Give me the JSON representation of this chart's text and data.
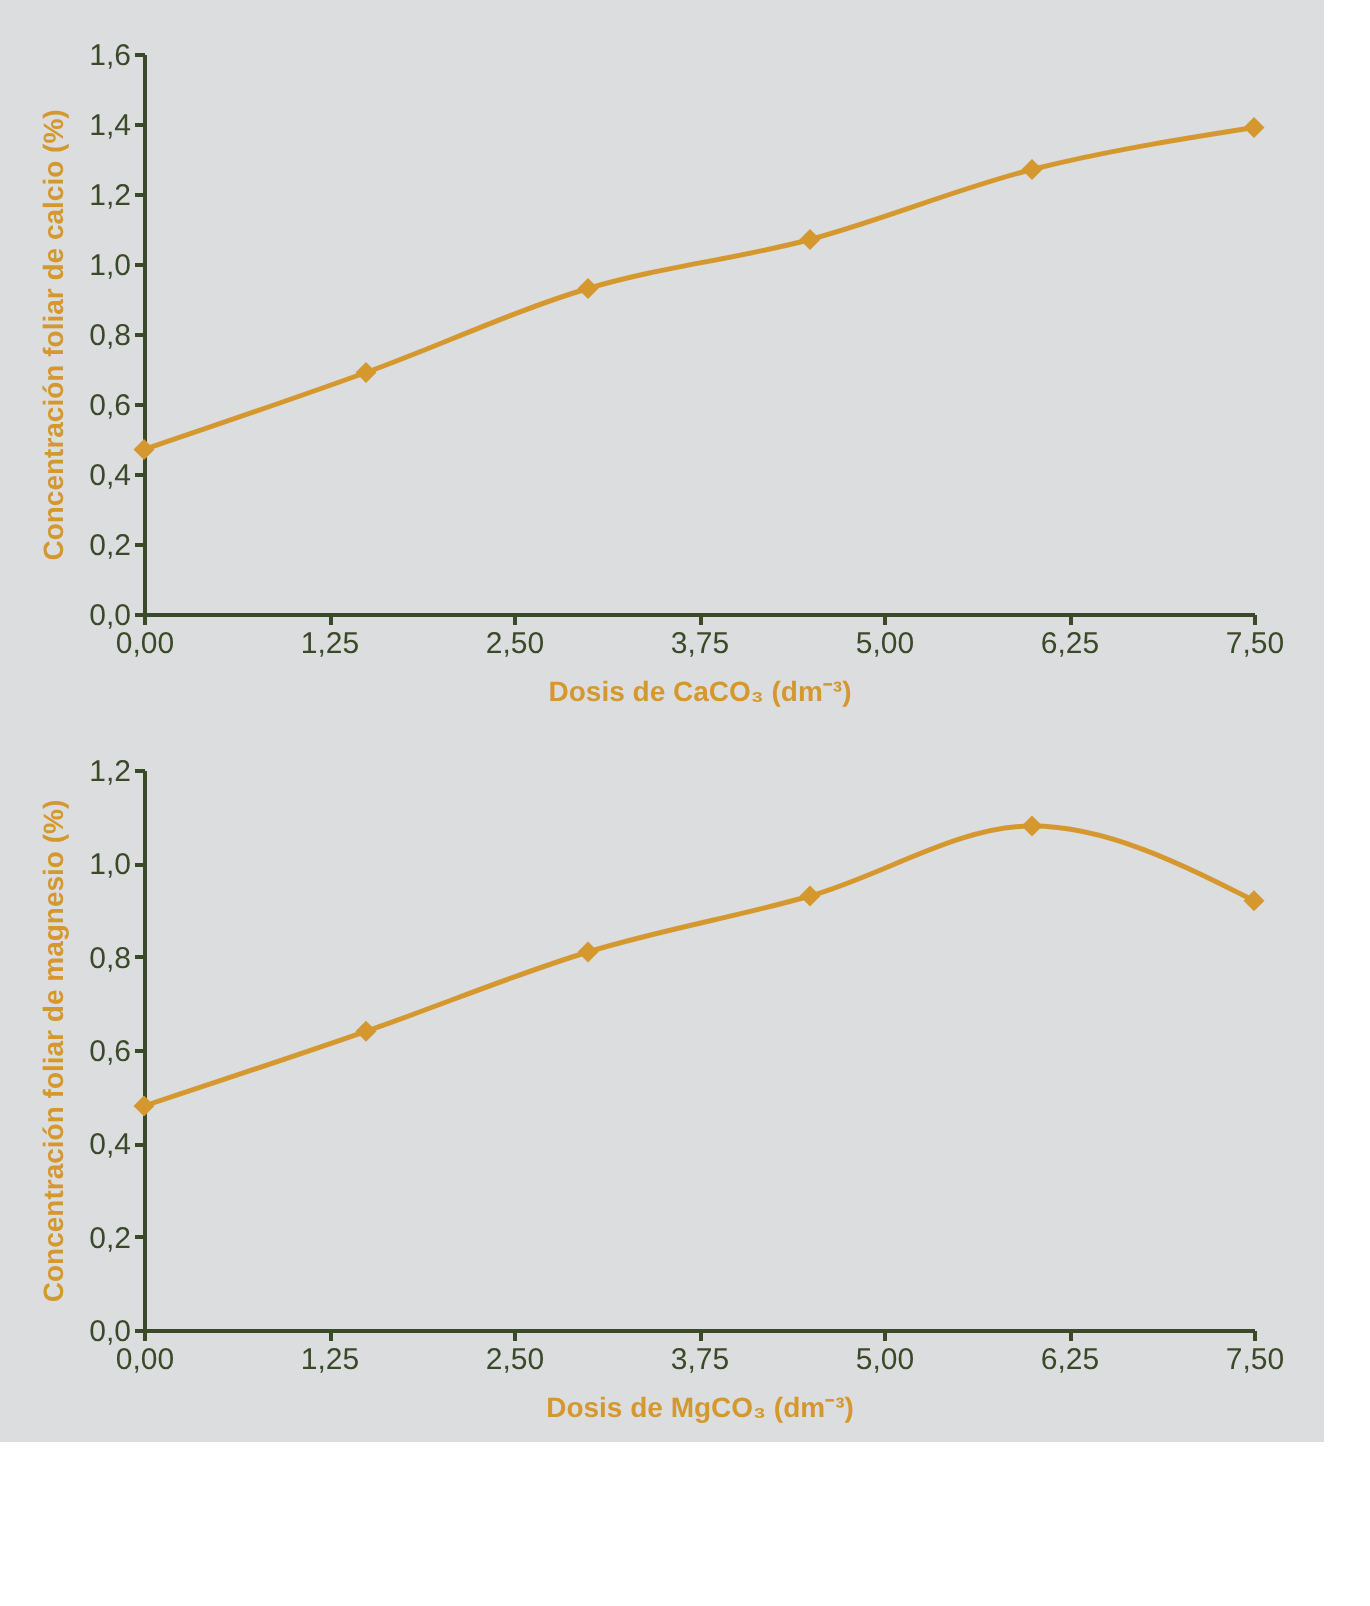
{
  "chart_data": [
    {
      "type": "line",
      "xlabel": "Dosis de CaCO₃ (dm⁻³)",
      "ylabel": "Concentración foliar de calcio (%)",
      "x": [
        0,
        1.5,
        3,
        4.5,
        6,
        7.5
      ],
      "series": [
        {
          "color": "#d4982f",
          "values": [
            0.47,
            0.69,
            0.93,
            1.07,
            1.27,
            1.39
          ]
        }
      ],
      "xlim": [
        0,
        7.5
      ],
      "xticks": [
        {
          "value": 0,
          "label": "0,00"
        },
        {
          "value": 1.25,
          "label": "1,25"
        },
        {
          "value": 2.5,
          "label": "2,50"
        },
        {
          "value": 3.75,
          "label": "3,75"
        },
        {
          "value": 5,
          "label": "5,00"
        },
        {
          "value": 6.25,
          "label": "6,25"
        },
        {
          "value": 7.5,
          "label": "7,50"
        }
      ],
      "ylim": [
        0,
        1.6
      ],
      "yticks": [
        {
          "value": 0,
          "label": "0,0"
        },
        {
          "value": 0.2,
          "label": "0,2"
        },
        {
          "value": 0.4,
          "label": "0,4"
        },
        {
          "value": 0.6,
          "label": "0,6"
        },
        {
          "value": 0.8,
          "label": "0,8"
        },
        {
          "value": 1.0,
          "label": "1,0"
        },
        {
          "value": 1.2,
          "label": "1,2"
        },
        {
          "value": 1.4,
          "label": "1,4"
        },
        {
          "value": 1.6,
          "label": "1,6"
        }
      ],
      "grid": false,
      "legend": false,
      "marker": "diamond",
      "line_style": "solid"
    },
    {
      "type": "line",
      "xlabel": "Dosis de MgCO₃ (dm⁻³)",
      "ylabel": "Concentración foliar de magnesio (%)",
      "x": [
        0,
        1.5,
        3,
        4.5,
        6,
        7.5
      ],
      "series": [
        {
          "color": "#d4982f",
          "values": [
            0.48,
            0.64,
            0.81,
            0.93,
            1.08,
            0.92
          ]
        }
      ],
      "xlim": [
        0,
        7.5
      ],
      "xticks": [
        {
          "value": 0,
          "label": "0,00"
        },
        {
          "value": 1.25,
          "label": "1,25"
        },
        {
          "value": 2.5,
          "label": "2,50"
        },
        {
          "value": 3.75,
          "label": "3,75"
        },
        {
          "value": 5,
          "label": "5,00"
        },
        {
          "value": 6.25,
          "label": "6,25"
        },
        {
          "value": 7.5,
          "label": "7,50"
        }
      ],
      "ylim": [
        0,
        1.2
      ],
      "yticks": [
        {
          "value": 0,
          "label": "0,0"
        },
        {
          "value": 0.2,
          "label": "0,2"
        },
        {
          "value": 0.4,
          "label": "0,4"
        },
        {
          "value": 0.6,
          "label": "0,6"
        },
        {
          "value": 0.8,
          "label": "0,8"
        },
        {
          "value": 1.0,
          "label": "1,0"
        },
        {
          "value": 1.2,
          "label": "1,2"
        }
      ],
      "grid": false,
      "legend": false,
      "marker": "diamond",
      "line_style": "solid"
    }
  ]
}
